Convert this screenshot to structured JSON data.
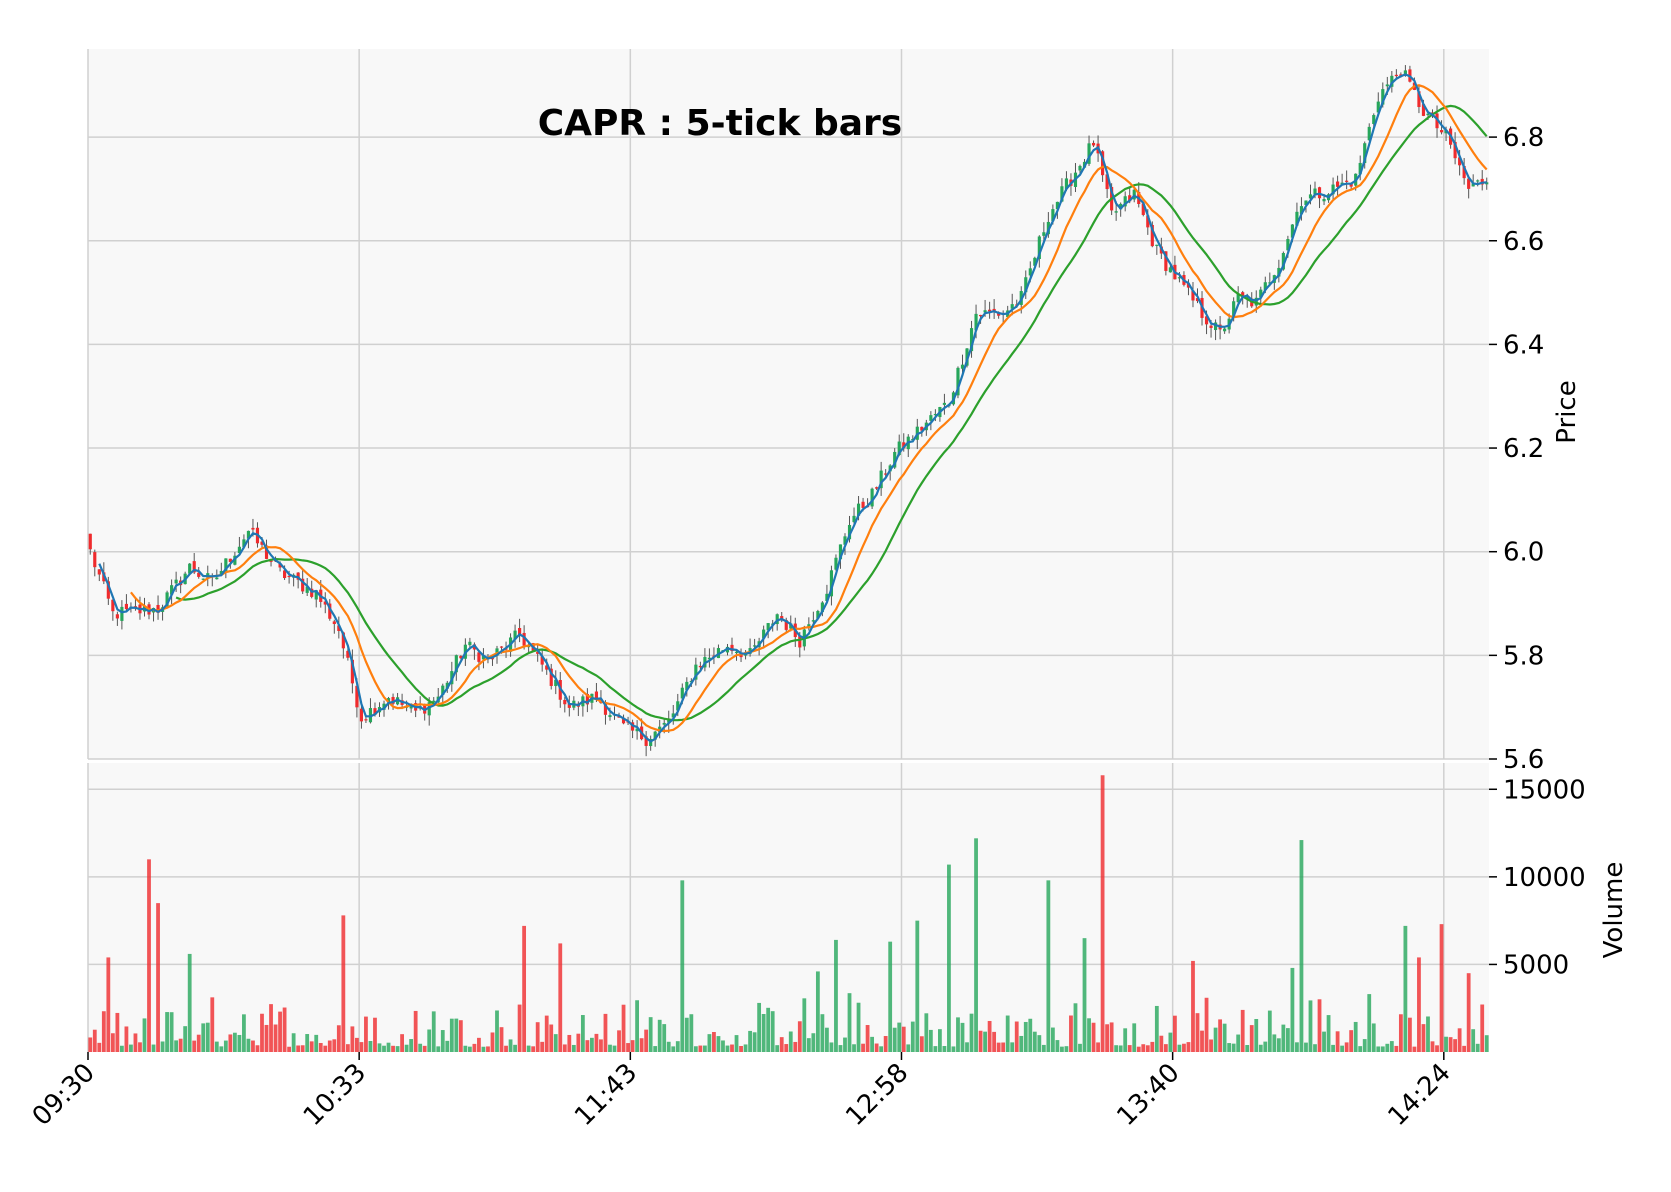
{
  "chart_data": {
    "type": "candlestick",
    "title": "CAPR : 5-tick bars",
    "price_axis": {
      "label": "Price",
      "range": [
        5.6,
        6.97
      ],
      "ticks": [
        "5.6",
        "5.8",
        "6.0",
        "6.2",
        "6.4",
        "6.6",
        "6.8"
      ]
    },
    "volume_axis": {
      "label": "Volume",
      "range": [
        0,
        16500
      ],
      "ticks": [
        "5000",
        "10000",
        "15000"
      ]
    },
    "x_axis": {
      "ticks": [
        "09:30",
        "10:33",
        "11:43",
        "12:58",
        "13:40",
        "14:24"
      ],
      "tick_bar_index": [
        0,
        60,
        120,
        180,
        240,
        300
      ],
      "bar_count": 310
    },
    "grid": true,
    "colors": {
      "up": "#26a65b",
      "down": "#ef2b2d",
      "ma_fast": "#1f77b4",
      "ma_mid": "#ff7f0e",
      "ma_slow": "#2ca02c",
      "grid": "#d0d0d0",
      "panel": "#f8f8f8"
    },
    "series": [
      {
        "name": "",
        "kind": "moving-average-fast"
      },
      {
        "name": "",
        "kind": "moving-average-mid"
      },
      {
        "name": "",
        "kind": "moving-average-slow"
      }
    ],
    "price_path_keypoints": [
      [
        0,
        6.0
      ],
      [
        5,
        5.88
      ],
      [
        15,
        5.89
      ],
      [
        22,
        5.97
      ],
      [
        27,
        5.94
      ],
      [
        35,
        6.04
      ],
      [
        42,
        5.96
      ],
      [
        50,
        5.92
      ],
      [
        55,
        5.85
      ],
      [
        60,
        5.68
      ],
      [
        66,
        5.72
      ],
      [
        72,
        5.69
      ],
      [
        77,
        5.72
      ],
      [
        83,
        5.82
      ],
      [
        88,
        5.79
      ],
      [
        95,
        5.84
      ],
      [
        100,
        5.78
      ],
      [
        106,
        5.7
      ],
      [
        112,
        5.72
      ],
      [
        118,
        5.66
      ],
      [
        123,
        5.64
      ],
      [
        128,
        5.67
      ],
      [
        134,
        5.78
      ],
      [
        141,
        5.82
      ],
      [
        146,
        5.8
      ],
      [
        152,
        5.88
      ],
      [
        157,
        5.83
      ],
      [
        163,
        5.93
      ],
      [
        168,
        6.06
      ],
      [
        173,
        6.11
      ],
      [
        178,
        6.19
      ],
      [
        184,
        6.24
      ],
      [
        190,
        6.29
      ],
      [
        196,
        6.46
      ],
      [
        202,
        6.46
      ],
      [
        206,
        6.49
      ],
      [
        212,
        6.65
      ],
      [
        217,
        6.72
      ],
      [
        222,
        6.79
      ],
      [
        226,
        6.65
      ],
      [
        231,
        6.69
      ],
      [
        236,
        6.58
      ],
      [
        241,
        6.52
      ],
      [
        246,
        6.46
      ],
      [
        250,
        6.42
      ],
      [
        254,
        6.49
      ],
      [
        258,
        6.48
      ],
      [
        263,
        6.56
      ],
      [
        268,
        6.68
      ],
      [
        275,
        6.7
      ],
      [
        280,
        6.72
      ],
      [
        285,
        6.88
      ],
      [
        290,
        6.93
      ],
      [
        295,
        6.85
      ],
      [
        300,
        6.8
      ],
      [
        305,
        6.7
      ],
      [
        309,
        6.72
      ]
    ],
    "volume_peaks": [
      [
        4,
        5400
      ],
      [
        13,
        11000
      ],
      [
        15,
        8500
      ],
      [
        22,
        5600
      ],
      [
        56,
        7800
      ],
      [
        96,
        7200
      ],
      [
        104,
        6200
      ],
      [
        131,
        9800
      ],
      [
        161,
        4600
      ],
      [
        165,
        6400
      ],
      [
        177,
        6300
      ],
      [
        183,
        7500
      ],
      [
        190,
        10700
      ],
      [
        196,
        12200
      ],
      [
        212,
        9800
      ],
      [
        220,
        6500
      ],
      [
        224,
        15800
      ],
      [
        244,
        5200
      ],
      [
        266,
        4800
      ],
      [
        268,
        12100
      ],
      [
        291,
        7200
      ],
      [
        294,
        5400
      ],
      [
        299,
        7300
      ],
      [
        305,
        4500
      ]
    ]
  }
}
